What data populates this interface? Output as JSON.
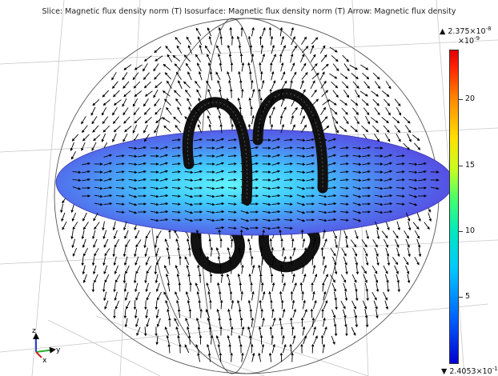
{
  "plot": {
    "title": "Slice: Magnetic flux density norm (T) Isosurface: Magnetic flux density norm (T) Arrow: Magnetic flux density"
  },
  "colorbar": {
    "max_label": "▲ 2.375×10",
    "max_exp": "-8",
    "scale_label": "×10",
    "scale_exp": "-9",
    "ticks": [
      "20",
      "15",
      "10",
      "5"
    ],
    "min_label": "▼ 2.4053×10",
    "min_exp": "-1"
  },
  "axes_triad": {
    "z": "z",
    "y": "y",
    "x": "x"
  },
  "colors": {
    "slice_center": "#5ef0ff",
    "slice_edge": "#4a5ae8",
    "coil": "#111111",
    "arrow": "#000000"
  }
}
